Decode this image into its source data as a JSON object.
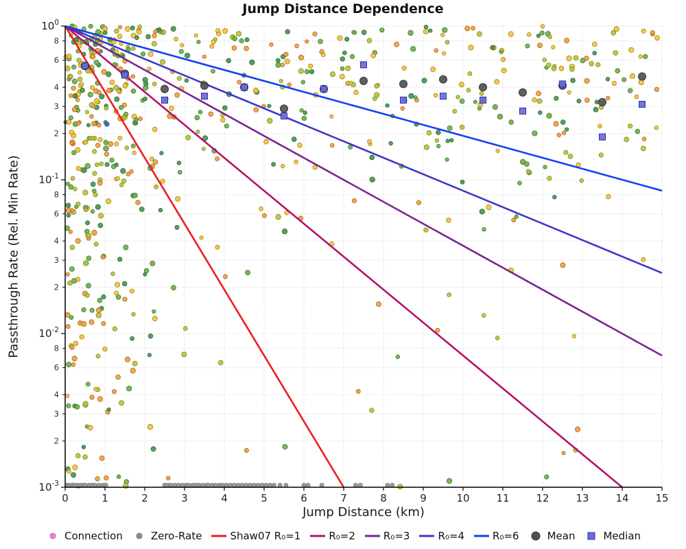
{
  "chart_data": {
    "type": "scatter",
    "title": "Jump Distance Dependence",
    "xlabel": "Jump Distance (km)",
    "ylabel": "Passthrough Rate (Rel. Min Rate)",
    "xlim": [
      0,
      15
    ],
    "y_log": true,
    "ylim_exp": [
      -3,
      0
    ],
    "grid": true,
    "legend_position": "bottom",
    "x_ticks": [
      0,
      1,
      2,
      3,
      4,
      5,
      6,
      7,
      8,
      9,
      10,
      11,
      12,
      13,
      14,
      15
    ],
    "y_major_exps": [
      0,
      -1,
      -2,
      -3
    ],
    "y_minor_mantissas": [
      8,
      6,
      4,
      3,
      2
    ],
    "lines": [
      {
        "label": "Shaw07 R₀=1",
        "r0": 1,
        "color": "#ee1c1c",
        "decades_per_km": 0.4286
      },
      {
        "label": "R₀=2",
        "r0": 2,
        "color": "#b5116b",
        "decades_per_km": 0.2143
      },
      {
        "label": "R₀=3",
        "r0": 3,
        "color": "#7a2490",
        "decades_per_km": 0.1429
      },
      {
        "label": "R₀=4",
        "r0": 4,
        "color": "#4038c8",
        "decades_per_km": 0.1071
      },
      {
        "label": "R₀=6",
        "r0": 6,
        "color": "#1440f0",
        "decades_per_km": 0.0714
      }
    ],
    "mean_series": {
      "label": "Mean",
      "color": "#4f4f4f",
      "stroke": "#333333",
      "x": [
        0.5,
        1.5,
        2.5,
        3.5,
        4.5,
        5.5,
        6.5,
        7.5,
        8.5,
        9.5,
        10.5,
        11.5,
        12.5,
        13.5,
        14.5
      ],
      "y": [
        0.55,
        0.49,
        0.39,
        0.41,
        0.4,
        0.29,
        0.39,
        0.44,
        0.42,
        0.45,
        0.4,
        0.37,
        0.41,
        0.32,
        0.47
      ]
    },
    "median_series": {
      "label": "Median",
      "color": "#6b6bd6",
      "stroke": "#2e2ea8",
      "x": [
        0.5,
        1.5,
        2.5,
        3.5,
        4.5,
        5.5,
        6.5,
        7.5,
        8.5,
        9.5,
        10.5,
        11.5,
        12.5,
        13.5,
        14.5
      ],
      "y": [
        0.55,
        0.48,
        0.33,
        0.35,
        0.4,
        0.26,
        0.39,
        0.56,
        0.33,
        0.35,
        0.33,
        0.28,
        0.42,
        0.19,
        0.31
      ]
    },
    "zero_rate": {
      "label": "Zero-Rate",
      "color": "#9a9a9a",
      "stroke": "#777777",
      "y_exp": -3,
      "x": [
        0.05,
        0.1,
        0.18,
        0.22,
        0.3,
        0.38,
        0.45,
        0.5,
        0.6,
        0.68,
        0.75,
        0.85,
        0.95,
        1.02,
        2.5,
        2.58,
        2.65,
        2.75,
        2.85,
        2.95,
        3.05,
        3.1,
        3.2,
        3.28,
        3.35,
        3.45,
        3.55,
        3.6,
        3.7,
        3.78,
        3.88,
        3.95,
        4.05,
        4.15,
        4.25,
        4.35,
        4.45,
        4.55,
        4.65,
        4.75,
        4.85,
        4.95,
        5.05,
        5.15,
        5.25,
        5.4,
        5.55,
        6.0,
        6.1,
        6.45,
        7.3,
        7.42,
        8.1,
        8.22
      ]
    },
    "extra_points": [
      {
        "x": 1.05,
        "y": 0.23,
        "color": "#3f6fd0",
        "stroke": "#27408b",
        "r": 3.2
      }
    ],
    "scatter_cloud": {
      "seed": 1337,
      "n": 680,
      "note": "dense yellow/green/orange cloud, concentrated at small x and high rate",
      "palette": [
        {
          "fill": "#f2c43d",
          "stroke": "#a87f10"
        },
        {
          "fill": "#ef9f3c",
          "stroke": "#a9661a"
        },
        {
          "fill": "#b9c23a",
          "stroke": "#7d8a1e"
        },
        {
          "fill": "#6fae4a",
          "stroke": "#417a2b"
        },
        {
          "fill": "#45954d",
          "stroke": "#2c6a36"
        }
      ]
    }
  },
  "legend": {
    "items": [
      {
        "label": "Connection",
        "marker": "dot",
        "color": "#f080d0",
        "stroke": "#d060b0"
      },
      {
        "label": "Zero-Rate",
        "marker": "dot",
        "color": "#8f8f8f",
        "stroke": "#6f6f6f"
      },
      {
        "label": "Shaw07 R₀=1",
        "marker": "line",
        "color": "#ee1c1c"
      },
      {
        "label": "R₀=2",
        "marker": "line",
        "color": "#b5116b"
      },
      {
        "label": "R₀=3",
        "marker": "line",
        "color": "#7a2490"
      },
      {
        "label": "R₀=4",
        "marker": "line",
        "color": "#4038c8"
      },
      {
        "label": "R₀=6",
        "marker": "line",
        "color": "#1440f0"
      },
      {
        "label": "Mean",
        "marker": "big-dot",
        "color": "#4f4f4f",
        "stroke": "#333333"
      },
      {
        "label": "Median",
        "marker": "square",
        "color": "#6b6bd6",
        "stroke": "#2e2ea8"
      }
    ]
  }
}
